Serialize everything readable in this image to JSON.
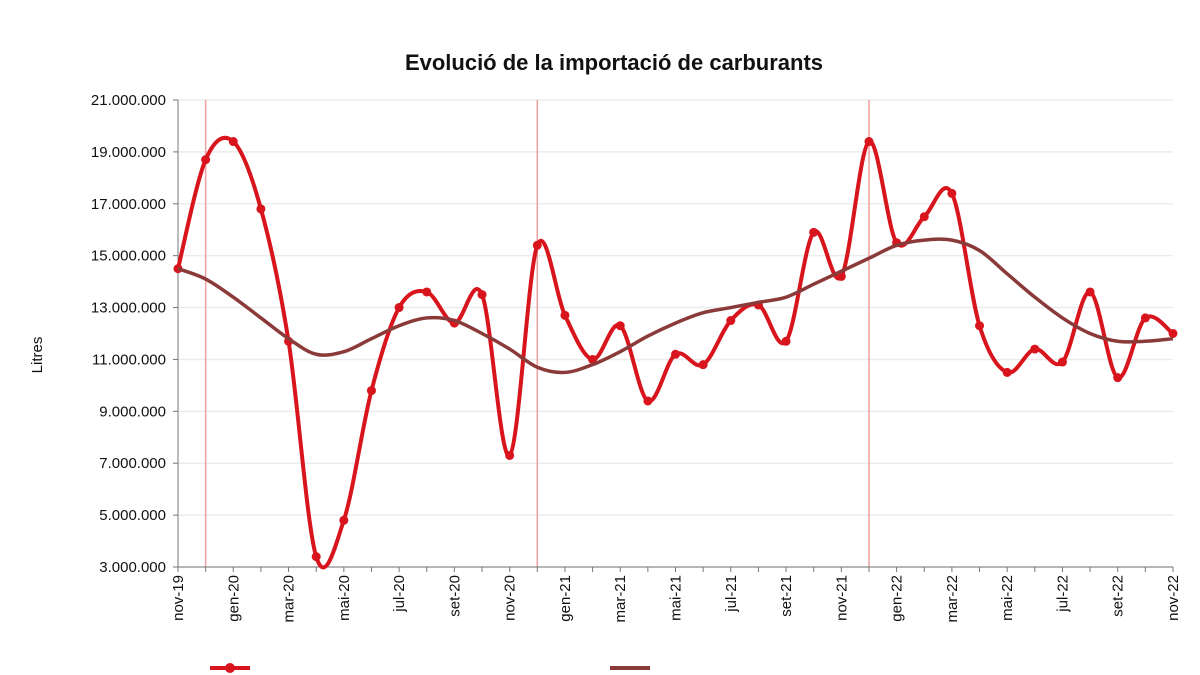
{
  "chart_data": {
    "type": "line",
    "title": "Evolució de la importació de carburants",
    "xlabel": "",
    "ylabel": "Litres",
    "ylim": [
      3000000,
      21000000
    ],
    "yticks": [
      "3.000.000",
      "5.000.000",
      "7.000.000",
      "9.000.000",
      "11.000.000",
      "13.000.000",
      "15.000.000",
      "17.000.000",
      "19.000.000",
      "21.000.000"
    ],
    "x": [
      "nov-19",
      "des-19",
      "gen-20",
      "feb-20",
      "mar-20",
      "abr-20",
      "mai-20",
      "jun-20",
      "jul-20",
      "ago-20",
      "set-20",
      "oct-20",
      "nov-20",
      "des-20",
      "gen-21",
      "feb-21",
      "mar-21",
      "abr-21",
      "mai-21",
      "jun-21",
      "jul-21",
      "ago-21",
      "set-21",
      "oct-21",
      "nov-21",
      "des-21",
      "gen-22",
      "feb-22",
      "mar-22",
      "abr-22",
      "mai-22",
      "jun-22",
      "jul-22",
      "ago-22",
      "set-22",
      "oct-22",
      "nov-22"
    ],
    "xtick_labels": [
      "nov-19",
      "gen-20",
      "mar-20",
      "mai-20",
      "jul-20",
      "set-20",
      "nov-20",
      "gen-21",
      "mar-21",
      "mai-21",
      "jul-21",
      "set-21",
      "nov-21",
      "gen-22",
      "mar-22",
      "mai-22",
      "jul-22",
      "set-22",
      "nov-22"
    ],
    "grid": true,
    "year_markers": [
      "des-19",
      "des-20",
      "des-21"
    ],
    "series": [
      {
        "color": "#d8141c",
        "markers": true,
        "values": [
          14500000,
          18700000,
          19400000,
          16800000,
          11700000,
          3400000,
          4800000,
          9800000,
          13000000,
          13600000,
          12400000,
          13500000,
          7300000,
          15400000,
          12700000,
          11000000,
          12300000,
          9400000,
          11200000,
          10800000,
          12500000,
          13100000,
          11700000,
          15900000,
          14200000,
          19400000,
          15500000,
          16500000,
          17400000,
          12300000,
          10500000,
          11400000,
          10900000,
          13600000,
          10300000,
          12600000,
          12000000
        ]
      },
      {
        "color": "#8b3a3a",
        "markers": false,
        "values": [
          14500000,
          14100000,
          13400000,
          12600000,
          11800000,
          11200000,
          11300000,
          11800000,
          12300000,
          12600000,
          12500000,
          12000000,
          11400000,
          10700000,
          10500000,
          10800000,
          11300000,
          11900000,
          12400000,
          12800000,
          13000000,
          13200000,
          13400000,
          13900000,
          14400000,
          14900000,
          15400000,
          15600000,
          15600000,
          15200000,
          14300000,
          13400000,
          12600000,
          12000000,
          11700000,
          11700000,
          11800000
        ]
      }
    ]
  }
}
